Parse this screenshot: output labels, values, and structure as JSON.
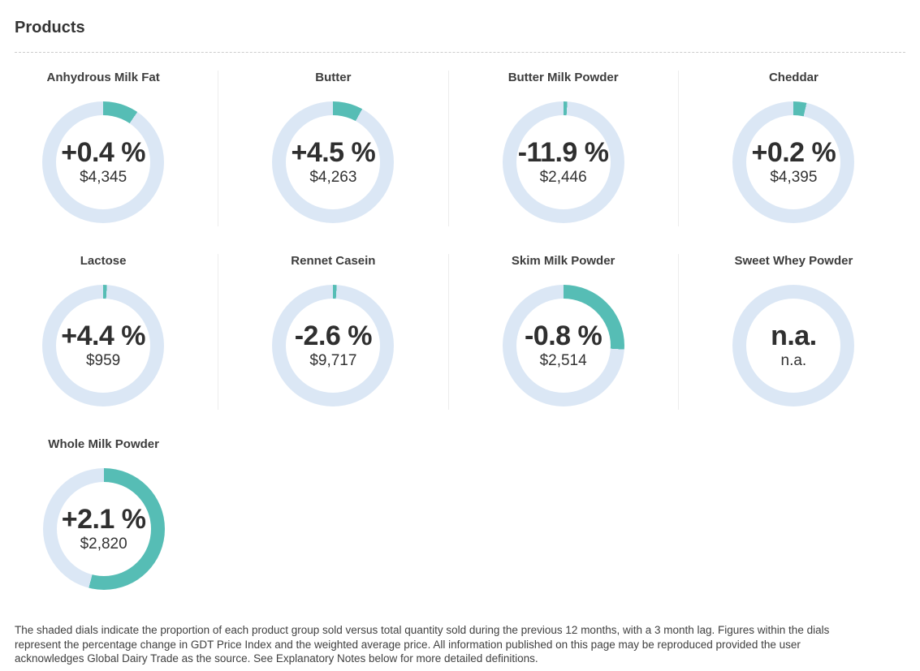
{
  "page": {
    "title": "Products"
  },
  "colors": {
    "shaded": "#56bdb5",
    "track": "#dbe7f5"
  },
  "products": [
    {
      "name": "Anhydrous Milk Fat",
      "change": "+0.4 %",
      "price": "$4,345",
      "shaded_pct": 9.5
    },
    {
      "name": "Butter",
      "change": "+4.5 %",
      "price": "$4,263",
      "shaded_pct": 8
    },
    {
      "name": "Butter Milk Powder",
      "change": "-11.9 %",
      "price": "$2,446",
      "shaded_pct": 1
    },
    {
      "name": "Cheddar",
      "change": "+0.2 %",
      "price": "$4,395",
      "shaded_pct": 3.5
    },
    {
      "name": "Lactose",
      "change": "+4.4 %",
      "price": "$959",
      "shaded_pct": 1
    },
    {
      "name": "Rennet Casein",
      "change": "-2.6 %",
      "price": "$9,717",
      "shaded_pct": 1
    },
    {
      "name": "Skim Milk Powder",
      "change": "-0.8 %",
      "price": "$2,514",
      "shaded_pct": 26
    },
    {
      "name": "Sweet Whey Powder",
      "change": "n.a.",
      "price": "n.a.",
      "shaded_pct": 0
    },
    {
      "name": "Whole Milk Powder",
      "change": "+2.1 %",
      "price": "$2,820",
      "shaded_pct": 54
    }
  ],
  "footer": {
    "text": "The shaded dials indicate the proportion of each product group sold versus total quantity sold during the previous 12 months, with a 3 month lag. Figures within the dials represent the percentage change in GDT Price Index and the weighted average price. All information published on this page may be reproduced provided the user acknowledges Global Dairy Trade as the source. See Explanatory Notes below for more detailed definitions."
  },
  "chart_data": [
    {
      "type": "pie",
      "title": "Anhydrous Milk Fat",
      "labels": [
        "proportion sold",
        "remainder"
      ],
      "values": [
        9.5,
        90.5
      ],
      "annotations": [
        "+0.4 %",
        "$4,345"
      ]
    },
    {
      "type": "pie",
      "title": "Butter",
      "labels": [
        "proportion sold",
        "remainder"
      ],
      "values": [
        8,
        92
      ],
      "annotations": [
        "+4.5 %",
        "$4,263"
      ]
    },
    {
      "type": "pie",
      "title": "Butter Milk Powder",
      "labels": [
        "proportion sold",
        "remainder"
      ],
      "values": [
        1,
        99
      ],
      "annotations": [
        "-11.9 %",
        "$2,446"
      ]
    },
    {
      "type": "pie",
      "title": "Cheddar",
      "labels": [
        "proportion sold",
        "remainder"
      ],
      "values": [
        3.5,
        96.5
      ],
      "annotations": [
        "+0.2 %",
        "$4,395"
      ]
    },
    {
      "type": "pie",
      "title": "Lactose",
      "labels": [
        "proportion sold",
        "remainder"
      ],
      "values": [
        1,
        99
      ],
      "annotations": [
        "+4.4 %",
        "$959"
      ]
    },
    {
      "type": "pie",
      "title": "Rennet Casein",
      "labels": [
        "proportion sold",
        "remainder"
      ],
      "values": [
        1,
        99
      ],
      "annotations": [
        "-2.6 %",
        "$9,717"
      ]
    },
    {
      "type": "pie",
      "title": "Skim Milk Powder",
      "labels": [
        "proportion sold",
        "remainder"
      ],
      "values": [
        26,
        74
      ],
      "annotations": [
        "-0.8 %",
        "$2,514"
      ]
    },
    {
      "type": "pie",
      "title": "Sweet Whey Powder",
      "labels": [
        "proportion sold",
        "remainder"
      ],
      "values": [
        0,
        100
      ],
      "annotations": [
        "n.a.",
        "n.a."
      ]
    },
    {
      "type": "pie",
      "title": "Whole Milk Powder",
      "labels": [
        "proportion sold",
        "remainder"
      ],
      "values": [
        54,
        46
      ],
      "annotations": [
        "+2.1 %",
        "$2,820"
      ]
    }
  ]
}
